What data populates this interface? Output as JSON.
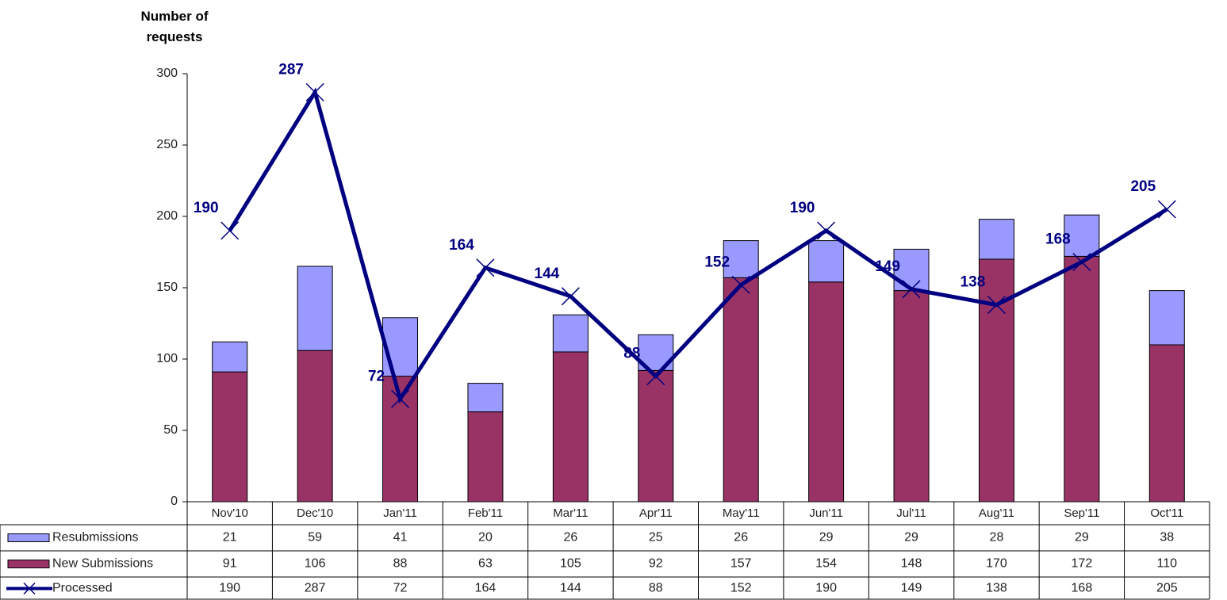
{
  "chart_data": {
    "type": "bar",
    "stacked": true,
    "y_label": "Number of requests",
    "categories": [
      "Nov'10",
      "Dec'10",
      "Jan'11",
      "Feb'11",
      "Mar'11",
      "Apr'11",
      "May'11",
      "Jun'11",
      "Jul'11",
      "Aug'11",
      "Sep'11",
      "Oct'11"
    ],
    "series": [
      {
        "name": "Resubmissions",
        "type": "bar",
        "color": "#9999ff",
        "values": [
          21,
          59,
          41,
          20,
          26,
          25,
          26,
          29,
          29,
          28,
          29,
          38
        ]
      },
      {
        "name": "New Submissions",
        "type": "bar",
        "color": "#993366",
        "values": [
          91,
          106,
          88,
          63,
          105,
          92,
          157,
          154,
          148,
          170,
          172,
          110
        ]
      },
      {
        "name": "Processed",
        "type": "line",
        "color": "#000080",
        "values": [
          190,
          287,
          72,
          164,
          144,
          88,
          152,
          190,
          149,
          138,
          168,
          205
        ]
      }
    ],
    "ylim": [
      0,
      300
    ],
    "yticks": [
      0,
      50,
      100,
      150,
      200,
      250,
      300
    ],
    "grid": false,
    "data_table": true
  }
}
